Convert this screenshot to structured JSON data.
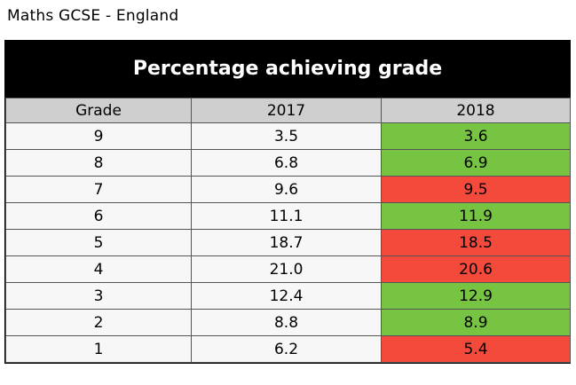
{
  "page": {
    "title": "Maths GCSE - England"
  },
  "colors": {
    "increase": "#76c442",
    "decrease": "#f44a3c",
    "header_bg": "#000000",
    "column_header_bg": "#cfcfcf"
  },
  "chart_data": {
    "type": "table",
    "title": "Percentage achieving grade",
    "columns": [
      "Grade",
      "2017",
      "2018"
    ],
    "rows": [
      {
        "grade": "9",
        "y2017": "3.5",
        "y2018": "3.6",
        "change": "up"
      },
      {
        "grade": "8",
        "y2017": "6.8",
        "y2018": "6.9",
        "change": "up"
      },
      {
        "grade": "7",
        "y2017": "9.6",
        "y2018": "9.5",
        "change": "down"
      },
      {
        "grade": "6",
        "y2017": "11.1",
        "y2018": "11.9",
        "change": "up"
      },
      {
        "grade": "5",
        "y2017": "18.7",
        "y2018": "18.5",
        "change": "down"
      },
      {
        "grade": "4",
        "y2017": "21.0",
        "y2018": "20.6",
        "change": "down"
      },
      {
        "grade": "3",
        "y2017": "12.4",
        "y2018": "12.9",
        "change": "up"
      },
      {
        "grade": "2",
        "y2017": "8.8",
        "y2018": "8.9",
        "change": "up"
      },
      {
        "grade": "1",
        "y2017": "6.2",
        "y2018": "5.4",
        "change": "down"
      }
    ]
  }
}
